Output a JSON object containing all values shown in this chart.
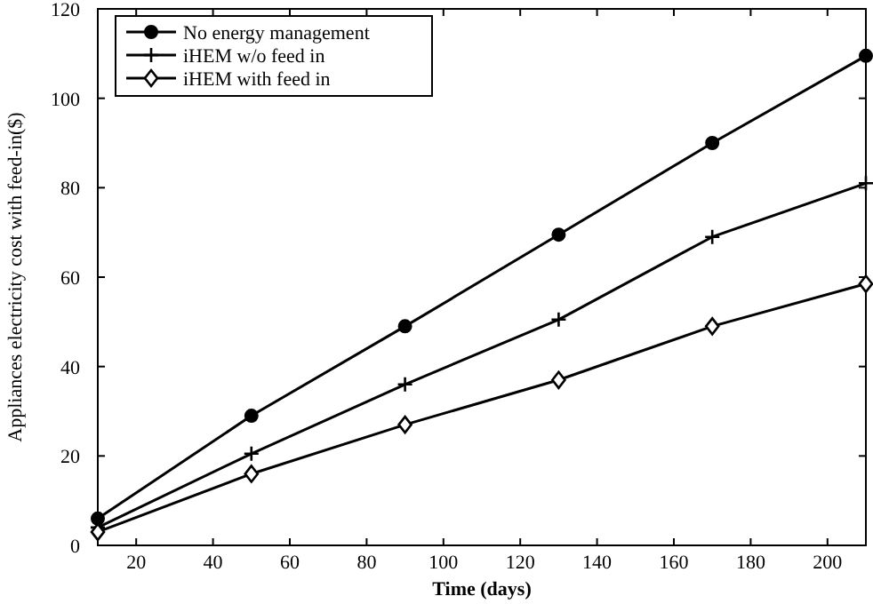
{
  "chart_data": {
    "type": "line",
    "xlabel": "Time (days)",
    "ylabel": "Appliances electricity cost with feed-in($)",
    "xlim": [
      10,
      210
    ],
    "xticks": [
      20,
      40,
      60,
      80,
      100,
      120,
      140,
      160,
      180,
      200
    ],
    "ylim": [
      0,
      120
    ],
    "yticks": [
      0,
      20,
      40,
      60,
      80,
      100,
      120
    ],
    "x": [
      10,
      50,
      90,
      130,
      170,
      210
    ],
    "legend": "top left",
    "grid": false,
    "line_style": "solid",
    "series": [
      {
        "name": "No energy management",
        "color": "#000000",
        "marker": "circle",
        "values": [
          6,
          29,
          49,
          69.5,
          90,
          109.5
        ]
      },
      {
        "name": "iHEM w/o feed in",
        "color": "#000000",
        "marker": "cross",
        "values": [
          4,
          20.5,
          36,
          50.5,
          69,
          81
        ]
      },
      {
        "name": "iHEM with feed in",
        "color": "#000000",
        "marker": "diamond",
        "values": [
          3,
          16,
          27,
          37,
          49,
          58.5
        ]
      }
    ]
  }
}
